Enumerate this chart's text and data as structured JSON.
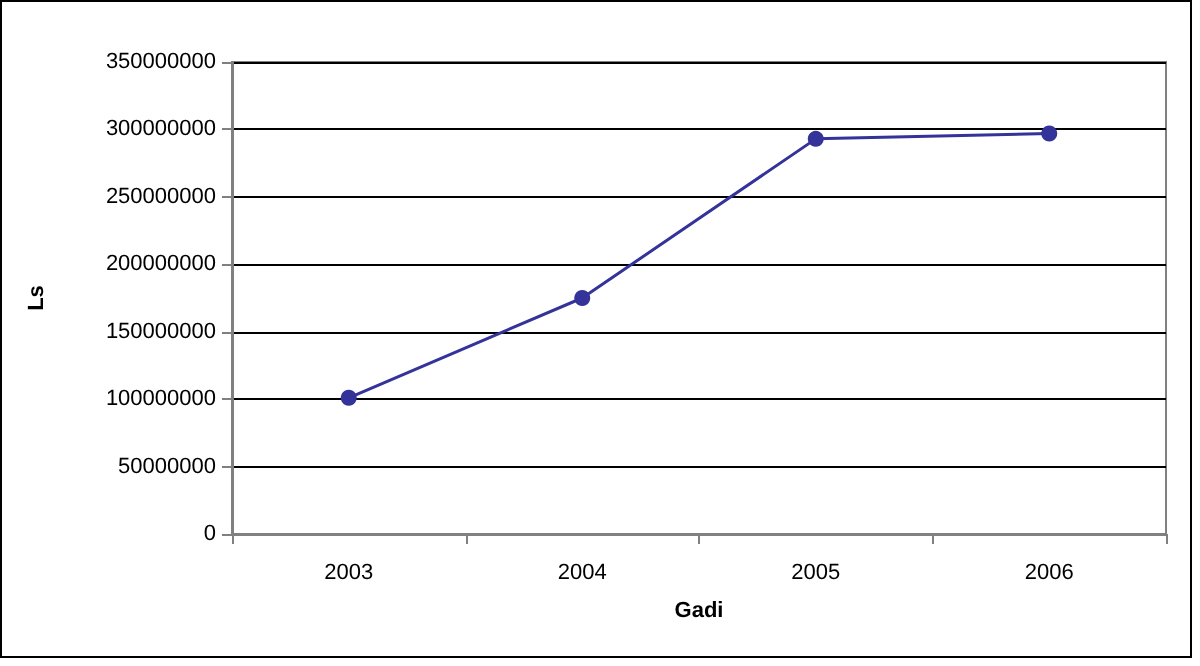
{
  "chart_data": {
    "type": "line",
    "xlabel": "Gadi",
    "ylabel": "Ls",
    "categories": [
      "2003",
      "2004",
      "2005",
      "2006"
    ],
    "series": [
      {
        "color": "#333399",
        "values": [
          101000000,
          175000000,
          293000000,
          297000000
        ]
      }
    ],
    "ylim": [
      0,
      350000000
    ],
    "yticks": [
      0,
      50000000,
      100000000,
      150000000,
      200000000,
      250000000,
      300000000,
      350000000
    ],
    "grid": "y",
    "marker": "circle",
    "line_style": "solid"
  }
}
